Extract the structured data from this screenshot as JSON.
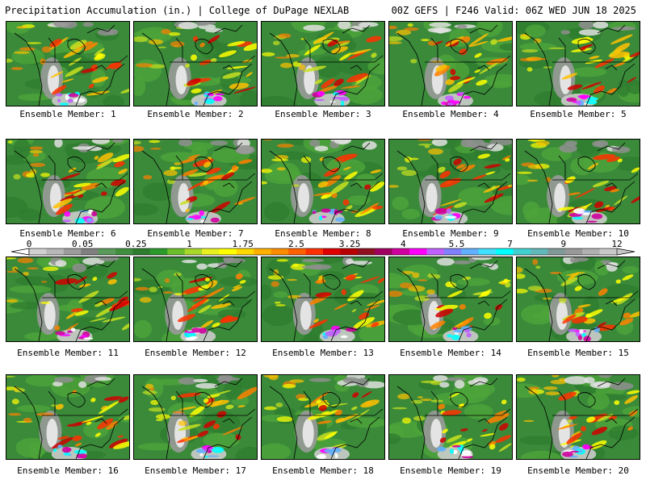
{
  "header": {
    "title_left": "Precipitation Accumulation (in.) | College of DuPage NEXLAB",
    "title_right": "00Z GEFS | F246 Valid: 06Z WED JUN 18 2025"
  },
  "members": [
    {
      "label": "Ensemble Member: 1"
    },
    {
      "label": "Ensemble Member: 2"
    },
    {
      "label": "Ensemble Member: 3"
    },
    {
      "label": "Ensemble Member: 4"
    },
    {
      "label": "Ensemble Member: 5"
    },
    {
      "label": "Ensemble Member: 6"
    },
    {
      "label": "Ensemble Member: 7"
    },
    {
      "label": "Ensemble Member: 8"
    },
    {
      "label": "Ensemble Member: 9"
    },
    {
      "label": "Ensemble Member: 10"
    },
    {
      "label": "Ensemble Member: 11"
    },
    {
      "label": "Ensemble Member: 12"
    },
    {
      "label": "Ensemble Member: 13"
    },
    {
      "label": "Ensemble Member: 14"
    },
    {
      "label": "Ensemble Member: 15"
    },
    {
      "label": "Ensemble Member: 16"
    },
    {
      "label": "Ensemble Member: 17"
    },
    {
      "label": "Ensemble Member: 18"
    },
    {
      "label": "Ensemble Member: 19"
    },
    {
      "label": "Ensemble Member: 20"
    }
  ],
  "colorbar": {
    "tick_labels": [
      "0",
      "0.05",
      "0.25",
      "1",
      "1.75",
      "2.5",
      "3.25",
      "4",
      "5.5",
      "7",
      "9",
      "12"
    ],
    "colors": [
      "#d0d0d0",
      "#b8b8b8",
      "#9c9c9c",
      "#808080",
      "#5a9a5a",
      "#3f8f3f",
      "#2e7d2e",
      "#2a9a2a",
      "#6cbf2a",
      "#a8d82a",
      "#e8f020",
      "#ffff00",
      "#ffd800",
      "#ffb000",
      "#ff8c00",
      "#ff6000",
      "#ff3000",
      "#e00000",
      "#b80000",
      "#901020",
      "#a00060",
      "#d000a0",
      "#ff00ff",
      "#c060ff",
      "#8080ff",
      "#60b0ff",
      "#40e0ff",
      "#00ffff",
      "#40d0d0",
      "#60b8b8",
      "#809898",
      "#989898",
      "#b0b0b0",
      "#c8c8c8"
    ]
  }
}
